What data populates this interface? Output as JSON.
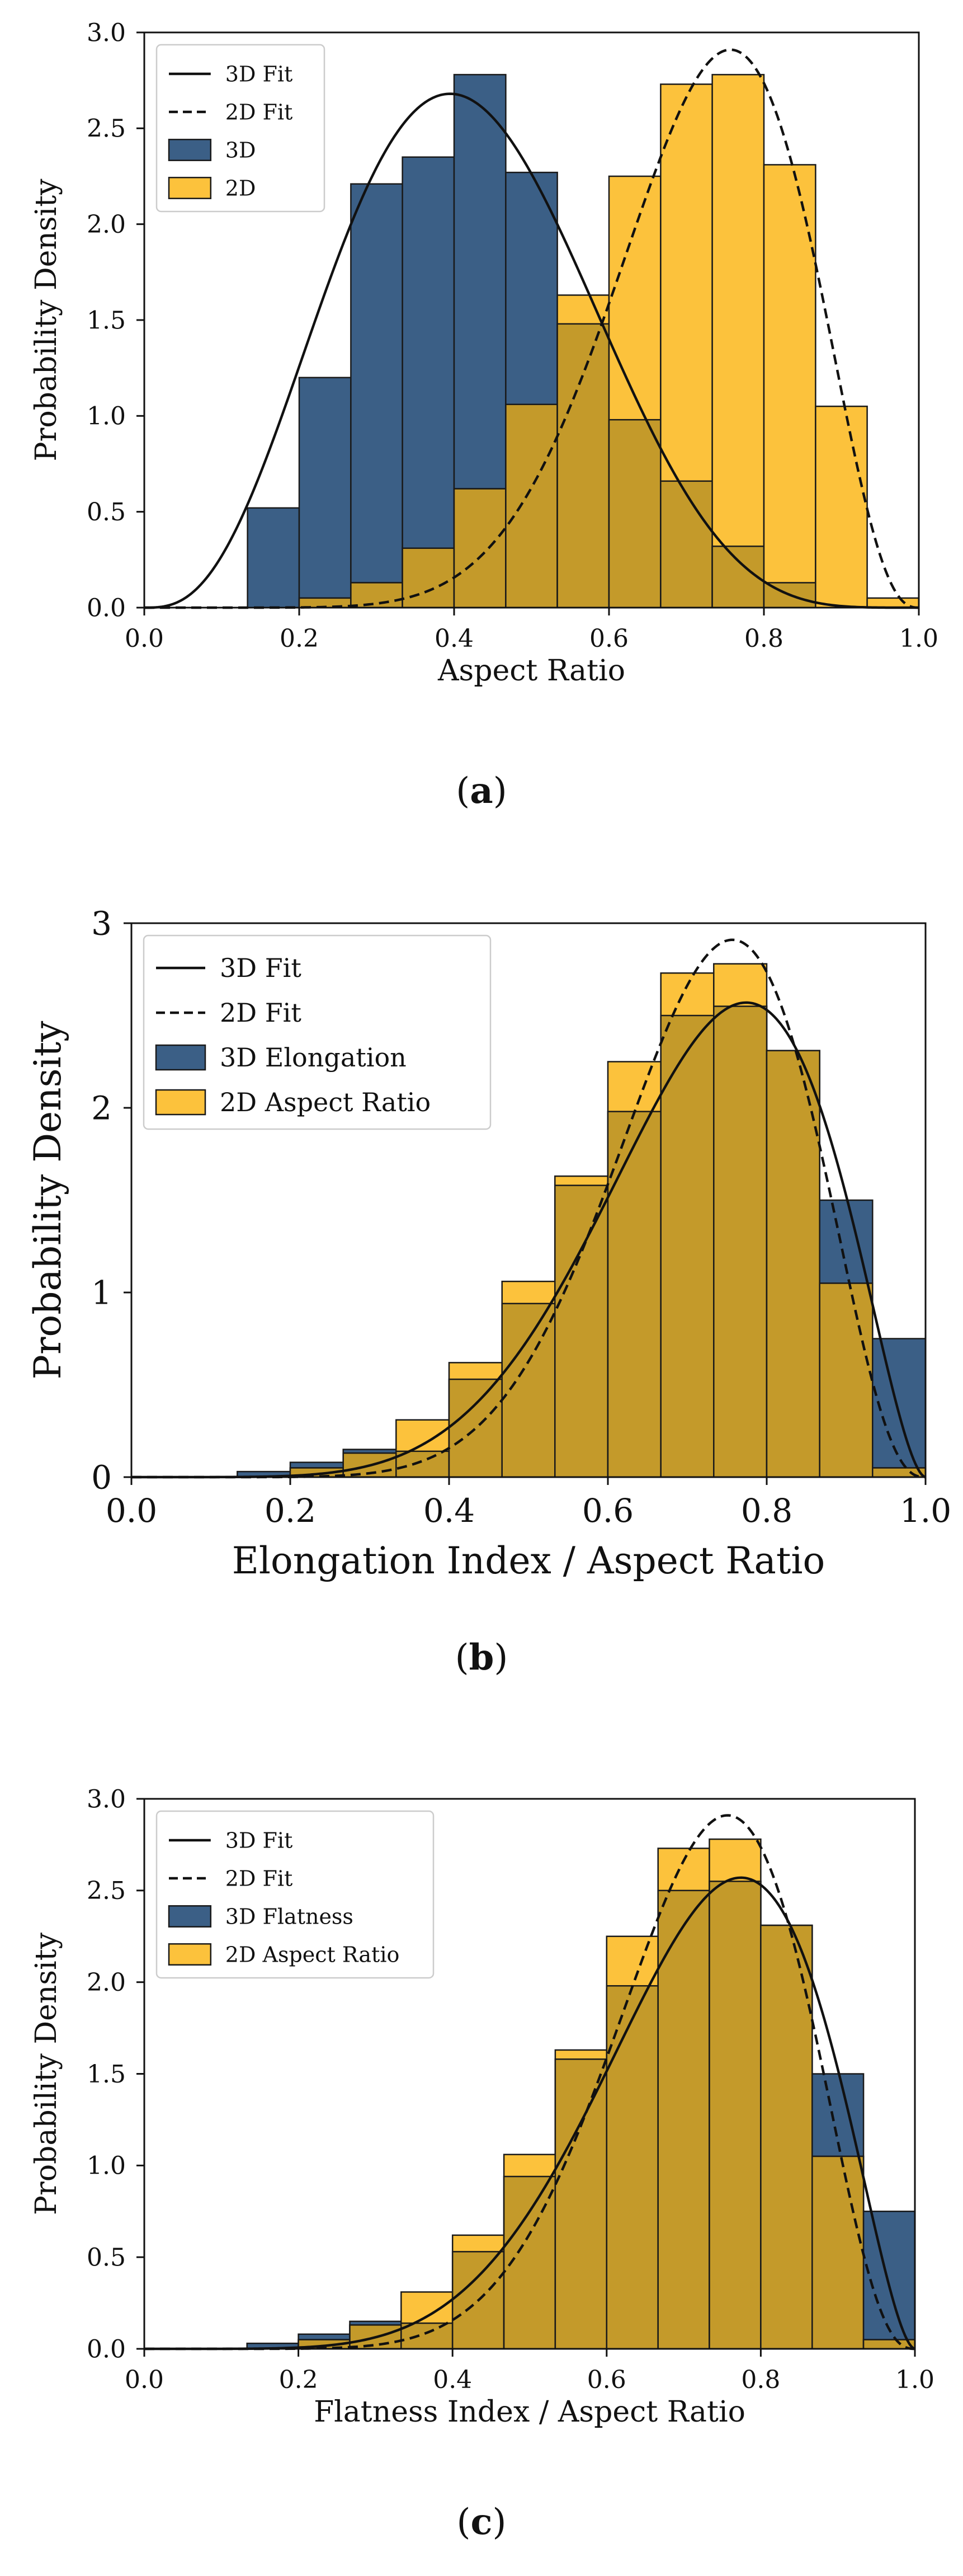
{
  "colors": {
    "bar_3d": "#3b5f86",
    "bar_2d": "#fcc23c",
    "overlap": "#c49a2a",
    "edge": "#1a1a1a",
    "fit": "#111111"
  },
  "chart_data": [
    {
      "type": "bar",
      "caption": "a",
      "xlabel": "Aspect Ratio",
      "ylabel": "Probability Density",
      "xlim": [
        0,
        1.0
      ],
      "ylim": [
        0,
        3.0
      ],
      "xticks": [
        0.0,
        0.2,
        0.4,
        0.6,
        0.8,
        1.0
      ],
      "xtick_labels": [
        "0.0",
        "0.2",
        "0.4",
        "0.6",
        "0.8",
        "1.0"
      ],
      "yticks": [
        0,
        0.5,
        1.0,
        1.5,
        2.0,
        2.5,
        3.0
      ],
      "ytick_labels": [
        "0.0",
        "0.5",
        "1.0",
        "1.5",
        "2.0",
        "2.5",
        "3.0"
      ],
      "bin_edges": [
        0.0667,
        0.1333,
        0.2,
        0.2667,
        0.3333,
        0.4,
        0.4667,
        0.5333,
        0.6,
        0.6667,
        0.7333,
        0.8,
        0.8667,
        0.9333,
        1.0
      ],
      "series": [
        {
          "name": "3D",
          "kind": "hist",
          "values": [
            0.0,
            0.52,
            1.2,
            2.21,
            2.35,
            2.78,
            2.27,
            1.48,
            0.98,
            0.66,
            0.32,
            0.13,
            0.0,
            0.0
          ]
        },
        {
          "name": "2D",
          "kind": "hist",
          "values": [
            0.0,
            0.0,
            0.05,
            0.13,
            0.31,
            0.62,
            1.06,
            1.63,
            2.25,
            2.73,
            2.78,
            2.31,
            1.05,
            0.05
          ]
        },
        {
          "name": "3D Fit",
          "kind": "fit",
          "dash": "solid",
          "beta": [
            4.0,
            5.6
          ],
          "peak": 2.68
        },
        {
          "name": "2D Fit",
          "kind": "fit",
          "dash": "dashed",
          "beta": [
            9.4,
            3.7
          ],
          "peak": 2.91
        }
      ],
      "legend": [
        "3D Fit",
        "2D Fit",
        "3D",
        "2D"
      ],
      "legend_position": "top-left"
    },
    {
      "type": "bar",
      "caption": "b",
      "xlabel": "Elongation Index / Aspect Ratio",
      "ylabel": "Probability Density",
      "xlim": [
        0,
        1.0
      ],
      "ylim": [
        0,
        3.0
      ],
      "xticks": [
        0.0,
        0.2,
        0.4,
        0.6,
        0.8,
        1.0
      ],
      "xtick_labels": [
        "0.0",
        "0.2",
        "0.4",
        "0.6",
        "0.8",
        "1.0"
      ],
      "yticks": [
        0,
        1,
        2,
        3
      ],
      "ytick_labels": [
        "0",
        "1",
        "2",
        "3"
      ],
      "bin_edges": [
        0.0667,
        0.1333,
        0.2,
        0.2667,
        0.3333,
        0.4,
        0.4667,
        0.5333,
        0.6,
        0.6667,
        0.7333,
        0.8,
        0.8667,
        0.9333,
        1.0
      ],
      "series": [
        {
          "name": "3D Elongation",
          "kind": "hist",
          "values": [
            0.0,
            0.03,
            0.08,
            0.15,
            0.14,
            0.53,
            0.94,
            1.58,
            1.98,
            2.5,
            2.55,
            2.31,
            1.5,
            0.75
          ]
        },
        {
          "name": "2D Aspect Ratio",
          "kind": "hist",
          "values": [
            0.0,
            0.0,
            0.05,
            0.13,
            0.31,
            0.62,
            1.06,
            1.63,
            2.25,
            2.73,
            2.78,
            2.31,
            1.05,
            0.05
          ]
        },
        {
          "name": "3D Fit",
          "kind": "fit",
          "dash": "solid",
          "beta": [
            7.0,
            2.75
          ],
          "peak": 2.57
        },
        {
          "name": "2D Fit",
          "kind": "fit",
          "dash": "dashed",
          "beta": [
            9.4,
            3.7
          ],
          "peak": 2.91
        }
      ],
      "legend": [
        "3D Fit",
        "2D Fit",
        "3D Elongation",
        "2D Aspect Ratio"
      ],
      "legend_position": "top-left"
    },
    {
      "type": "bar",
      "caption": "c",
      "xlabel": "Flatness Index / Aspect Ratio",
      "ylabel": "Probability Density",
      "xlim": [
        0,
        1.0
      ],
      "ylim": [
        0,
        3.0
      ],
      "xticks": [
        0.0,
        0.2,
        0.4,
        0.6,
        0.8,
        1.0
      ],
      "xtick_labels": [
        "0.0",
        "0.2",
        "0.4",
        "0.6",
        "0.8",
        "1.0"
      ],
      "yticks": [
        0,
        0.5,
        1.0,
        1.5,
        2.0,
        2.5,
        3.0
      ],
      "ytick_labels": [
        "0.0",
        "0.5",
        "1.0",
        "1.5",
        "2.0",
        "2.5",
        "3.0"
      ],
      "bin_edges": [
        0.0667,
        0.1333,
        0.2,
        0.2667,
        0.3333,
        0.4,
        0.4667,
        0.5333,
        0.6,
        0.6667,
        0.7333,
        0.8,
        0.8667,
        0.9333,
        1.0
      ],
      "series": [
        {
          "name": "3D Flatness",
          "kind": "hist",
          "values": [
            0.0,
            0.03,
            0.08,
            0.15,
            0.14,
            0.53,
            0.94,
            1.58,
            1.98,
            2.5,
            2.55,
            2.31,
            1.5,
            0.75
          ]
        },
        {
          "name": "2D Aspect Ratio",
          "kind": "hist",
          "values": [
            0.0,
            0.0,
            0.05,
            0.13,
            0.31,
            0.62,
            1.06,
            1.63,
            2.25,
            2.73,
            2.78,
            2.31,
            1.05,
            0.05
          ]
        },
        {
          "name": "3D Fit",
          "kind": "fit",
          "dash": "solid",
          "beta": [
            7.0,
            2.75
          ],
          "peak": 2.57
        },
        {
          "name": "2D Fit",
          "kind": "fit",
          "dash": "dashed",
          "beta": [
            9.4,
            3.7
          ],
          "peak": 2.91
        }
      ],
      "legend": [
        "3D Fit",
        "2D Fit",
        "3D Flatness",
        "2D Aspect Ratio"
      ],
      "legend_position": "top-left"
    }
  ]
}
